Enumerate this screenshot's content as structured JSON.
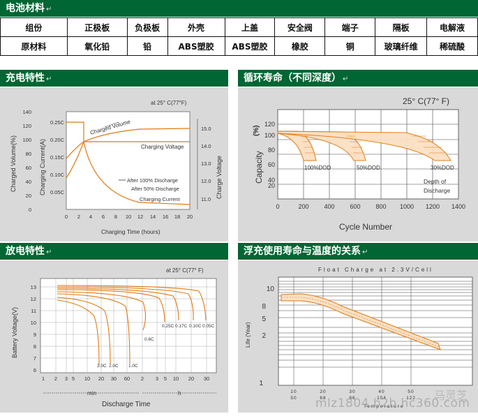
{
  "header": {
    "title": "电池材料",
    "para_mark": "↵"
  },
  "materials": {
    "components": [
      "组份",
      "正极板",
      "负极板",
      "外壳",
      "上盖",
      "安全阀",
      "端子",
      "隔板",
      "电解液"
    ],
    "materials": [
      "原材料",
      "氧化铅",
      "铅",
      "ABS塑胶",
      "ABS塑胶",
      "橡胶",
      "铜",
      "玻璃纤维",
      "稀硫酸"
    ]
  },
  "panels": {
    "charge": {
      "title": "充电特性"
    },
    "cycle": {
      "title": "循环寿命（不同深度）"
    },
    "discharge": {
      "title": "放电特性"
    },
    "float": {
      "title": "浮充使用寿命与温度的关系"
    }
  },
  "charts": {
    "charge": {
      "condition": "at 25° C(77°F)",
      "y1_label": "Charged Volume(%)",
      "y1_ticks": [
        "140",
        "120",
        "100",
        "80",
        "60",
        "40",
        "20",
        "0"
      ],
      "y2_label": "Charging Current(A)",
      "y2_ticks": [
        "0.25C",
        "0.20C",
        "0.15C",
        "0.10C",
        "0.05C"
      ],
      "y3_label": "Charge Voltage",
      "y3_ticks": [
        "15.0",
        "14.0",
        "13.0",
        "12.0",
        "11.0"
      ],
      "xlabel": "Charging Time (hours)",
      "x_ticks": [
        "0",
        "2",
        "4",
        "6",
        "8",
        "10",
        "12",
        "14",
        "16",
        "18",
        "20"
      ],
      "labels": {
        "volume": "Charged Volume",
        "voltage": "Charging Voltage",
        "after100": "After 100% Discharge",
        "after50": "After 50% Discharge",
        "current": "Charging Current"
      }
    },
    "cycle": {
      "condition": "25° C(77° F)",
      "ylabel": "Capacity",
      "yunit": "(%)",
      "y_ticks": [
        "120",
        "100",
        "80",
        "60",
        "40",
        "20"
      ],
      "xlabel": "Cycle Number",
      "x_ticks": [
        "0",
        "200",
        "400",
        "600",
        "800",
        "1000",
        "1200",
        "1400"
      ],
      "dod_labels": [
        "100%DOD",
        "50%DOD",
        "30%DOD"
      ],
      "depth_label_1": "Depth of",
      "depth_label_2": "Discharge"
    },
    "discharge": {
      "condition": "at 25° C(77° F)",
      "ylabel": "Battery Voltage(V)",
      "y_ticks": [
        "13",
        "12",
        "11",
        "10",
        "9",
        "8",
        "7",
        "6"
      ],
      "x_ticks": [
        "1",
        "2",
        "3",
        "5",
        "10",
        "20",
        "30",
        "60",
        "2",
        "3",
        "5",
        "10",
        "20",
        "30"
      ],
      "min_label": "min",
      "h_label": "h",
      "xlabel": "Discharge Time",
      "rate_labels": [
        "3.0C",
        "2.0C",
        "1.0C",
        "0.6C",
        "0.25C",
        "0.17C",
        "0.10C",
        "0.05C"
      ]
    },
    "float": {
      "title": "Float Charge at 2.3V/Cell",
      "ylabel": "Life (Year)",
      "y_ticks": [
        "10",
        "8",
        "5",
        "2",
        "1"
      ],
      "xlabel": "Temperature",
      "x_ticks_c": [
        "10",
        "20",
        "30",
        "40",
        "50"
      ],
      "x_ticks_f": [
        "50",
        "68",
        "86",
        "104",
        "122"
      ]
    }
  },
  "watermark": {
    "text": "mlz1804.b2b.hc360.com",
    "logo": "马灵芝"
  },
  "colors": {
    "header": "#006633",
    "panel": "#d9d9d9",
    "curve": "#e07a10"
  }
}
